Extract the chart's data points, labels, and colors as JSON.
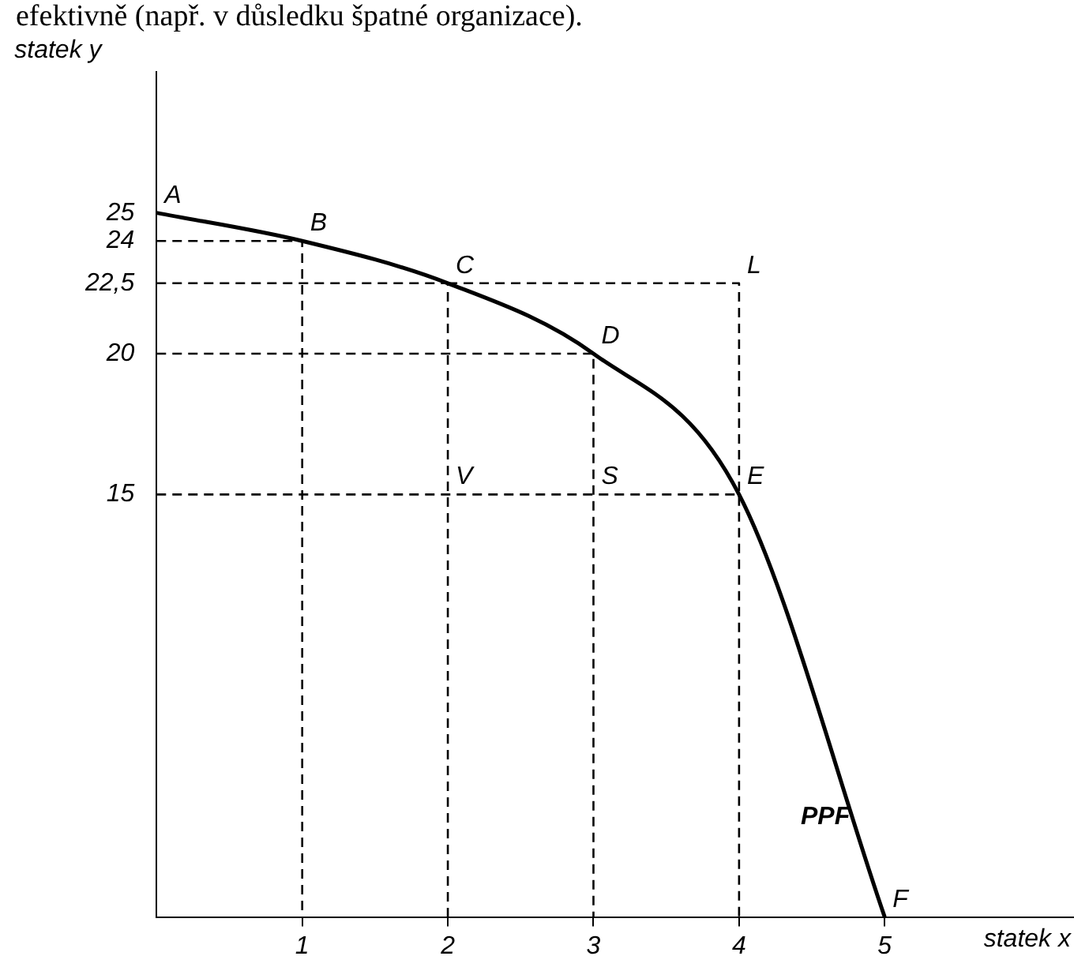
{
  "chart_data": {
    "type": "line",
    "xlabel": "statek x",
    "ylabel": "statek y",
    "annotations": [
      "efektivně (např. v důsledku špatné organizace).",
      {
        "text": "A",
        "x": 0,
        "y": 25
      },
      {
        "text": "B",
        "x": 1,
        "y": 24
      },
      {
        "text": "C",
        "x": 2,
        "y": 22.5
      },
      {
        "text": "D",
        "x": 3,
        "y": 20
      },
      {
        "text": "E",
        "x": 4,
        "y": 15
      },
      {
        "text": "F",
        "x": 5,
        "y": 0
      },
      {
        "text": "L",
        "x": 4,
        "y": 22.5
      },
      {
        "text": "V",
        "x": 2,
        "y": 15
      },
      {
        "text": "S",
        "x": 3,
        "y": 15
      }
    ],
    "series": [
      {
        "name": "PPF",
        "color": "#000000",
        "line_style": "solid",
        "x": [
          0,
          1,
          2,
          3,
          4,
          5
        ],
        "values": [
          25,
          24,
          22.5,
          20,
          15,
          0
        ]
      },
      {
        "color": "#000000",
        "line_style": "dashed",
        "x": [
          0,
          1,
          1
        ],
        "values": [
          24,
          24,
          0
        ]
      },
      {
        "color": "#000000",
        "line_style": "dashed",
        "x": [
          0,
          2,
          2
        ],
        "values": [
          22.5,
          22.5,
          0
        ]
      },
      {
        "color": "#000000",
        "line_style": "dashed",
        "x": [
          0,
          3,
          3
        ],
        "values": [
          20,
          20,
          0
        ]
      },
      {
        "color": "#000000",
        "line_style": "dashed",
        "x": [
          0,
          4,
          4
        ],
        "values": [
          15,
          15,
          0
        ]
      },
      {
        "color": "#000000",
        "line_style": "dashed",
        "x": [
          2,
          4,
          4
        ],
        "values": [
          22.5,
          22.5,
          15
        ]
      }
    ],
    "xlim": [
      0,
      6.3
    ],
    "ylim": [
      0,
      30
    ],
    "xticks": [
      1,
      2,
      3,
      4,
      5
    ],
    "yticks": [
      15,
      20,
      {
        "value": 22.5,
        "label": "22,5"
      },
      24,
      25
    ],
    "grid": false,
    "legend": false,
    "marker": "none"
  }
}
